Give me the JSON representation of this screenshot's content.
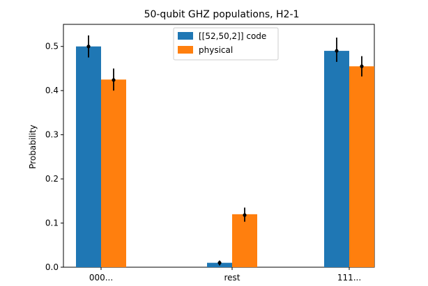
{
  "chart_data": {
    "type": "bar",
    "title": "50-qubit GHZ populations, H2-1",
    "xlabel": "",
    "ylabel": "Probability",
    "categories": [
      "000...",
      "rest",
      "111..."
    ],
    "ylim": [
      0,
      0.55
    ],
    "yticks": [
      0.0,
      0.1,
      0.2,
      0.3,
      0.4,
      0.5
    ],
    "ytick_labels": [
      "0.0",
      "0.1",
      "0.2",
      "0.3",
      "0.4",
      "0.5"
    ],
    "legend_position": "top-center",
    "grid": false,
    "series": [
      {
        "name": "[[52,50,2]] code",
        "color": "#1f77b4",
        "values": [
          0.5,
          0.01,
          0.49
        ],
        "point_estimates": [
          0.5,
          0.01,
          0.49
        ],
        "error_low": [
          0.475,
          0.004,
          0.465
        ],
        "error_high": [
          0.525,
          0.015,
          0.52
        ]
      },
      {
        "name": "physical",
        "color": "#ff7f0e",
        "values": [
          0.425,
          0.12,
          0.455
        ],
        "point_estimates": [
          0.424,
          0.118,
          0.455
        ],
        "error_low": [
          0.4,
          0.103,
          0.432
        ],
        "error_high": [
          0.45,
          0.135,
          0.478
        ]
      }
    ]
  }
}
